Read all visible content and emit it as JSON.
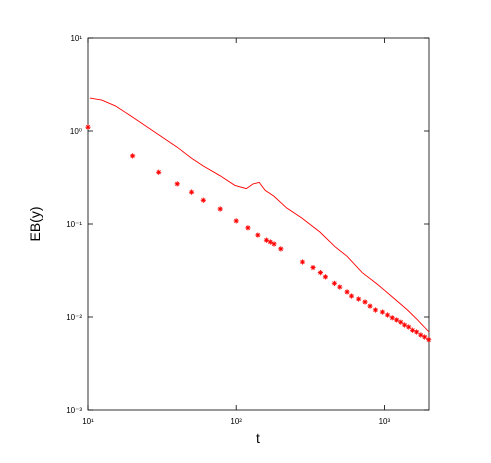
{
  "chart_data": {
    "type": "line",
    "xlabel": "t",
    "ylabel": "EB(y)",
    "xlog": true,
    "ylog": true,
    "xlim": [
      10,
      2000
    ],
    "ylim": [
      0.001,
      10
    ],
    "xticks": [
      {
        "value": 10,
        "label": "10¹"
      },
      {
        "value": 100,
        "label": "10²"
      },
      {
        "value": 1000,
        "label": "10³"
      }
    ],
    "yticks": [
      {
        "value": 0.001,
        "label": "10⁻³"
      },
      {
        "value": 0.01,
        "label": "10⁻²"
      },
      {
        "value": 0.1,
        "label": "10⁻¹"
      },
      {
        "value": 1,
        "label": "10⁰"
      },
      {
        "value": 10,
        "label": "10¹"
      }
    ],
    "series": [
      {
        "style": "line",
        "color": "#ff0000",
        "x": [
          10.3,
          12.4,
          15.3,
          20,
          30,
          40,
          50,
          60,
          78,
          98,
          117,
          130,
          143,
          157,
          179,
          219,
          277,
          367,
          464,
          560,
          708,
          895,
          1132,
          1432,
          1675,
          2000
        ],
        "values": [
          2.26,
          2.15,
          1.86,
          1.41,
          0.91,
          0.67,
          0.51,
          0.42,
          0.33,
          0.26,
          0.24,
          0.27,
          0.28,
          0.23,
          0.2,
          0.149,
          0.116,
          0.082,
          0.057,
          0.045,
          0.03,
          0.0226,
          0.0164,
          0.0119,
          0.0093,
          0.0069
        ]
      },
      {
        "style": "marker",
        "color": "#ff0000",
        "x": [
          10,
          20,
          30,
          40,
          50,
          60,
          78,
          100,
          120,
          140,
          160,
          170,
          180,
          200,
          280,
          330,
          370,
          400,
          460,
          500,
          560,
          600,
          670,
          740,
          800,
          870,
          970,
          1050,
          1130,
          1210,
          1290,
          1370,
          1460,
          1550,
          1650,
          1760,
          1870,
          1990
        ],
        "values": [
          1.1,
          0.54,
          0.36,
          0.27,
          0.22,
          0.18,
          0.145,
          0.108,
          0.091,
          0.076,
          0.067,
          0.064,
          0.061,
          0.054,
          0.039,
          0.034,
          0.03,
          0.027,
          0.023,
          0.021,
          0.0186,
          0.0168,
          0.0156,
          0.0145,
          0.0131,
          0.0119,
          0.0113,
          0.0105,
          0.0098,
          0.0093,
          0.0088,
          0.0082,
          0.0078,
          0.0072,
          0.0069,
          0.0064,
          0.0061,
          0.0057
        ]
      }
    ]
  }
}
